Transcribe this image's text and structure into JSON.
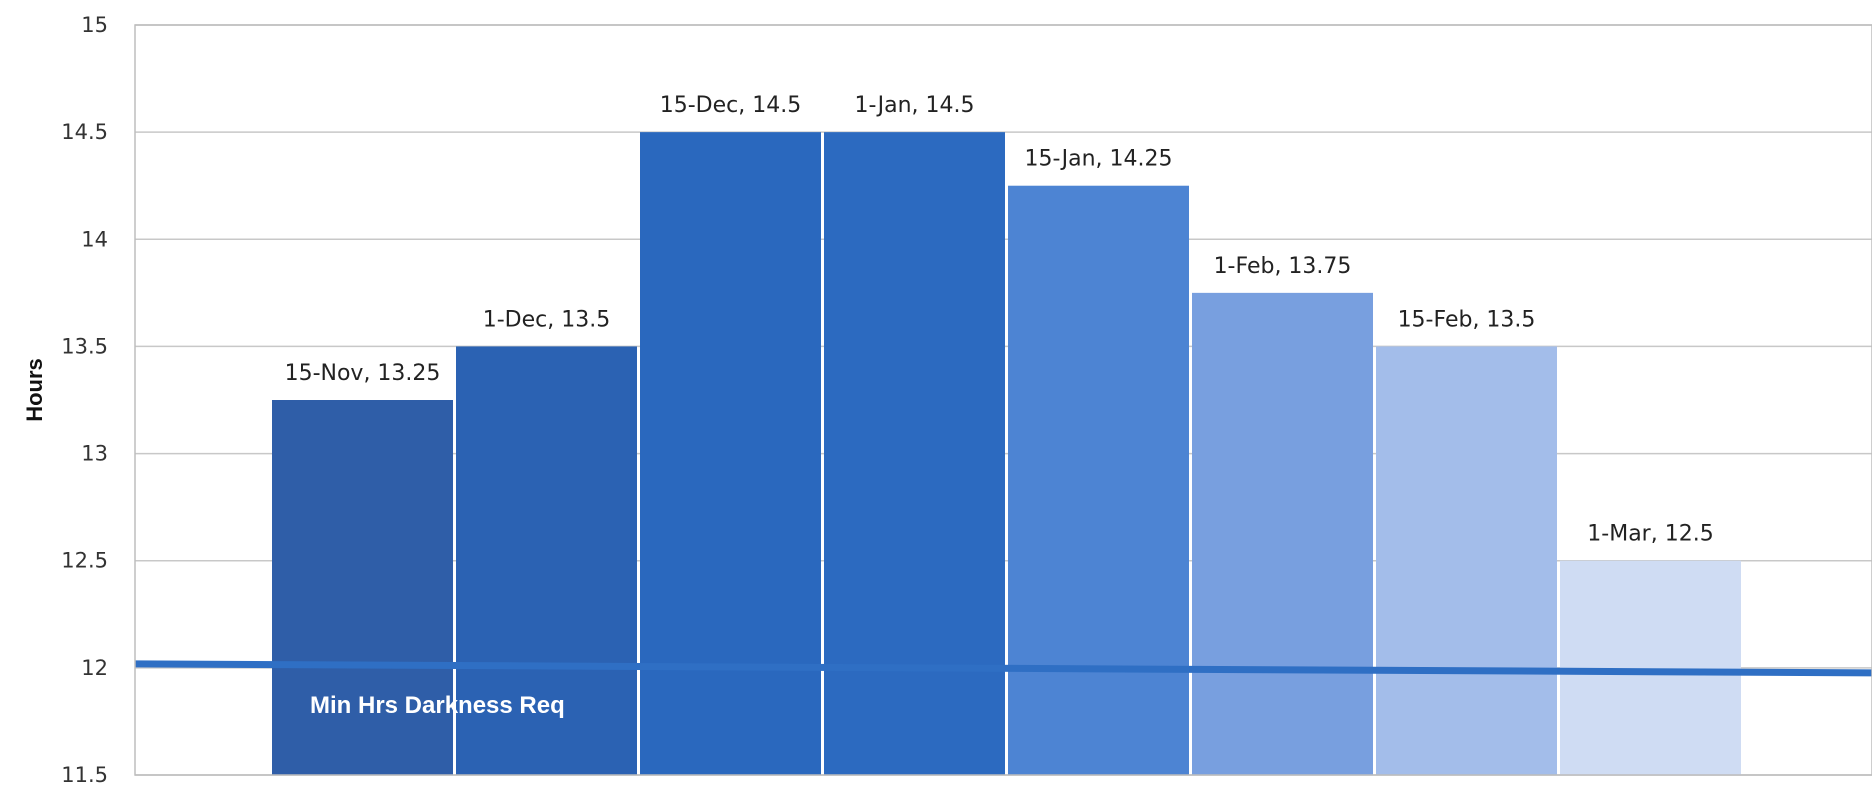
{
  "chart_data": {
    "type": "bar",
    "categories": [
      "15-Nov",
      "1-Dec",
      "15-Dec",
      "1-Jan",
      "15-Jan",
      "1-Feb",
      "15-Feb",
      "1-Mar"
    ],
    "values": [
      13.25,
      13.5,
      14.5,
      14.5,
      14.25,
      13.75,
      13.5,
      12.5
    ],
    "data_labels": [
      "15-Nov, 13.25",
      "1-Dec, 13.5",
      "15-Dec, 14.5",
      "1-Jan, 14.5",
      "15-Jan, 14.25",
      "1-Feb, 13.75",
      "15-Feb, 13.5",
      "1-Mar, 12.5"
    ],
    "bar_colors": [
      "#2f5ea8",
      "#2b62b3",
      "#2a68be",
      "#2c6ac0",
      "#4d84d3",
      "#789fdf",
      "#a3bdea",
      "#cfdcf3"
    ],
    "ylabel": "Hours",
    "ylim": [
      11.5,
      15
    ],
    "yticks": [
      "11.5",
      "12",
      "12.5",
      "13",
      "13.5",
      "14",
      "14.5",
      "15"
    ],
    "grid": true,
    "reference_line": {
      "value": 12,
      "label": "Min Hrs Darkness Req",
      "color": "#2f6fc4"
    }
  }
}
